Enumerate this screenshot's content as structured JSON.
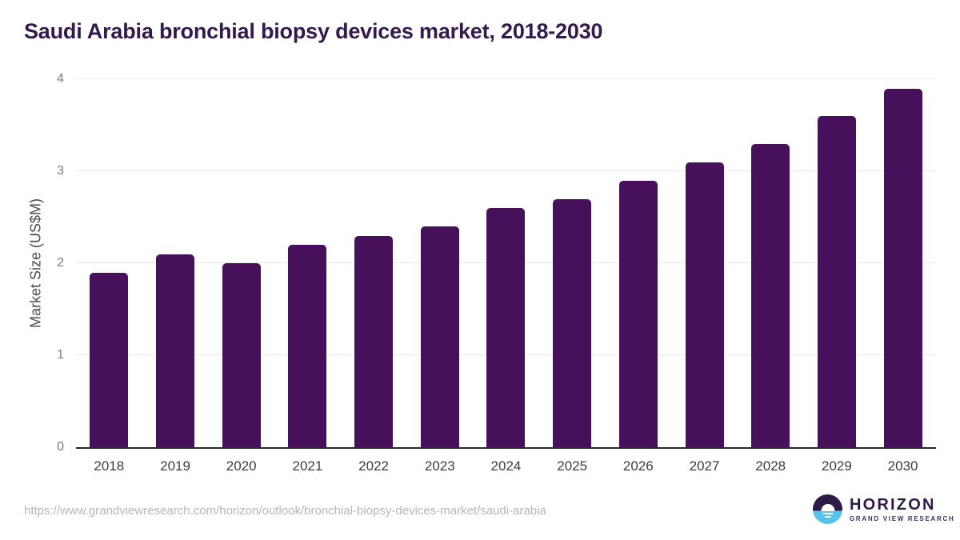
{
  "title": "Saudi Arabia bronchial biopsy devices market, 2018-2030",
  "chart_data": {
    "type": "bar",
    "title": "Saudi Arabia bronchial biopsy devices market, 2018-2030",
    "categories": [
      "2018",
      "2019",
      "2020",
      "2021",
      "2022",
      "2023",
      "2024",
      "2025",
      "2026",
      "2027",
      "2028",
      "2029",
      "2030"
    ],
    "values": [
      1.9,
      2.1,
      2.0,
      2.2,
      2.3,
      2.4,
      2.6,
      2.7,
      2.9,
      3.1,
      3.3,
      3.6,
      3.9
    ],
    "xlabel": "",
    "ylabel": "Market Size (US$M)",
    "ylim": [
      0,
      4
    ],
    "yticks": [
      0,
      1,
      2,
      3,
      4
    ],
    "grid": "horizontal",
    "legend": "none",
    "bar_color": "#46105a"
  },
  "footer": {
    "source_url": "https://www.grandviewresearch.com/horizon/outlook/bronchial-biopsy-devices-market/saudi-arabia",
    "logo": {
      "name": "HORIZON",
      "subtitle": "GRAND VIEW RESEARCH"
    }
  },
  "colors": {
    "title_text": "#33194d",
    "bar": "#46105a",
    "axis_line": "#2b2b2b",
    "gridline": "#e8e8e8",
    "y_tick_text": "#7b7b7b",
    "x_tick_text": "#3c3c3c",
    "y_axis_title_text": "#4c4c4c",
    "url_text": "#b6b6b6",
    "logo_purple": "#2e1a47",
    "logo_blue": "#55c3ea"
  }
}
